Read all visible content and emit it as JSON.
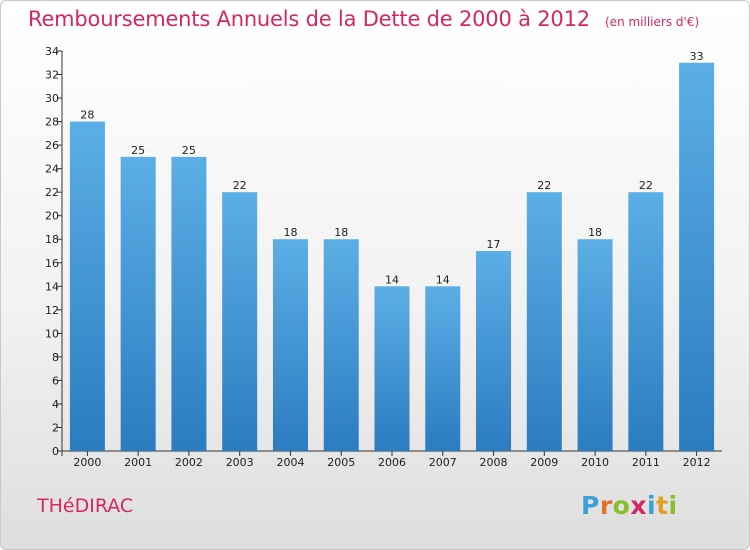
{
  "title": "Remboursements Annuels de la Dette de 2000 à 2012",
  "unit_label": "(en milliers d'€)",
  "commune": "THéDIRAC",
  "logo": {
    "letters": [
      "P",
      "r",
      "o",
      "x",
      "i",
      "t",
      "i"
    ],
    "colors": [
      "#3aa0d8",
      "#e0702a",
      "#8bbf2a",
      "#d4285f",
      "#3aa0d8",
      "#e0a020",
      "#8bbf2a"
    ]
  },
  "colors": {
    "bar_top": "#5caee6",
    "bar_bottom": "#2b7cc0",
    "accent": "#d4285f"
  },
  "chart_data": {
    "type": "bar",
    "categories": [
      "2000",
      "2001",
      "2002",
      "2003",
      "2004",
      "2005",
      "2006",
      "2007",
      "2008",
      "2009",
      "2010",
      "2011",
      "2012"
    ],
    "values": [
      28,
      25,
      25,
      22,
      18,
      18,
      14,
      14,
      17,
      22,
      18,
      22,
      33
    ],
    "ylim": [
      0,
      34
    ],
    "yticks": [
      0,
      2,
      4,
      6,
      8,
      10,
      12,
      14,
      16,
      18,
      20,
      22,
      24,
      26,
      28,
      30,
      32,
      34
    ],
    "grid": false,
    "data_labels": true
  }
}
